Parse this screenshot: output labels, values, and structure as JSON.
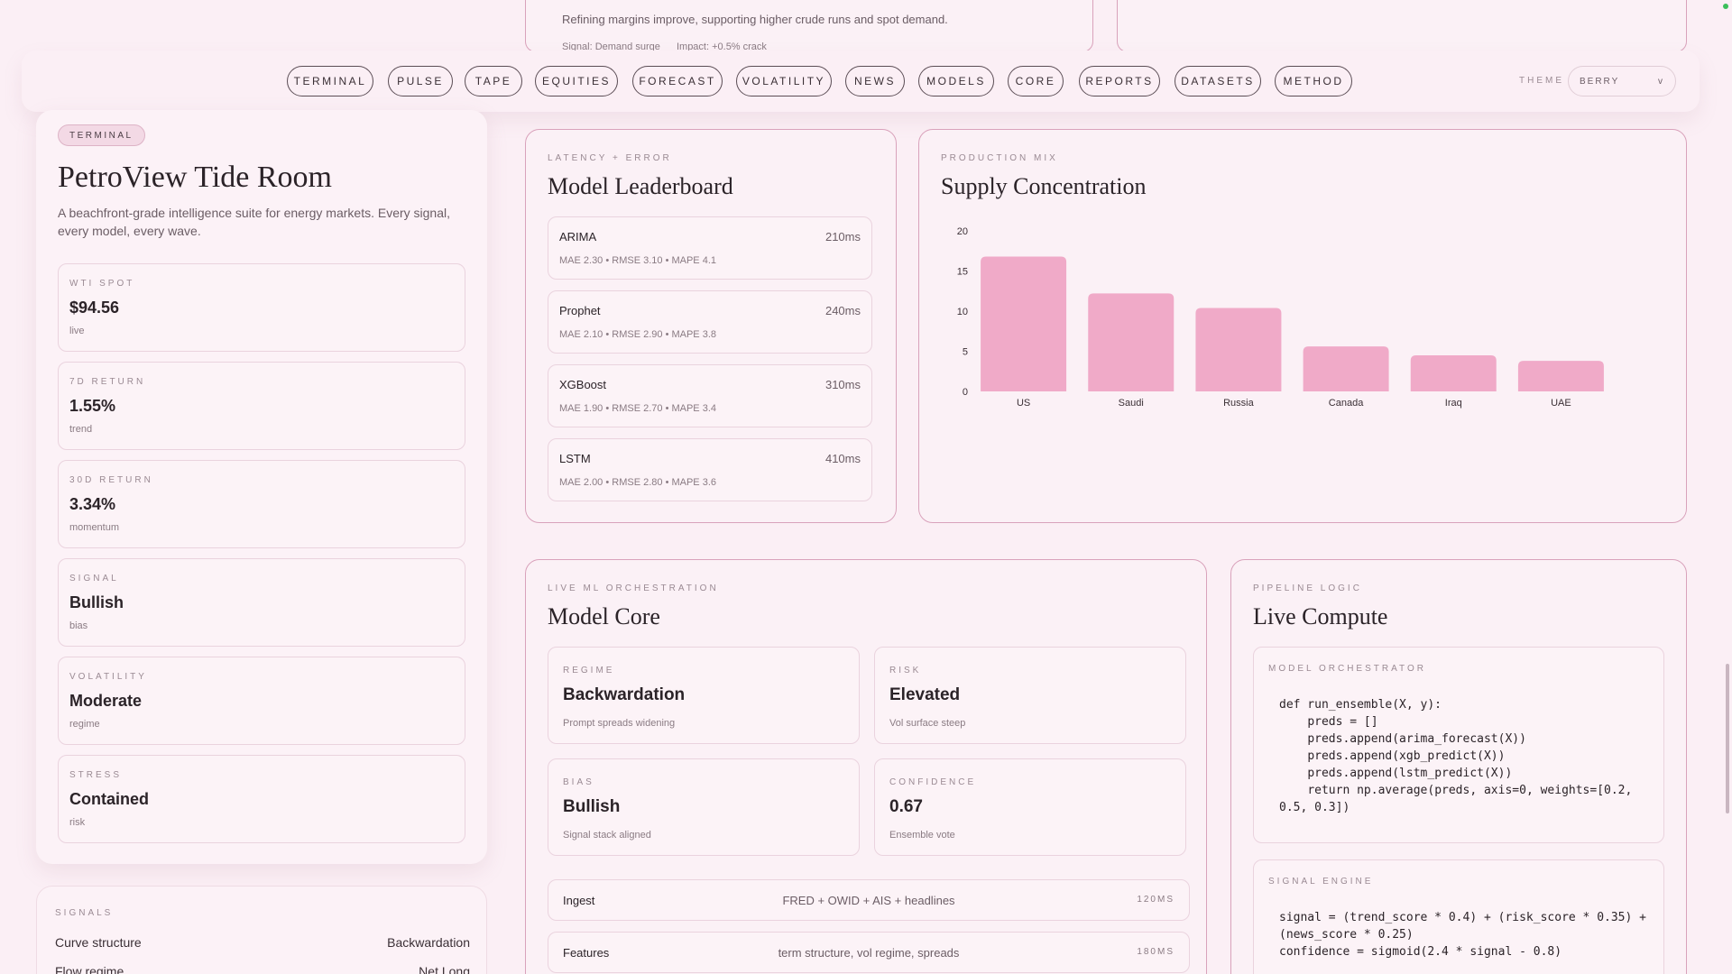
{
  "peek": {
    "text": "Refining margins improve, supporting higher crude runs and spot demand.",
    "signal": "Signal: Demand surge",
    "impact": "Impact: +0.5% crack"
  },
  "nav": {
    "items": [
      "TERMINAL",
      "PULSE",
      "TAPE",
      "EQUITIES",
      "FORECAST",
      "VOLATILITY",
      "NEWS",
      "MODELS",
      "CORE",
      "REPORTS",
      "DATASETS",
      "METHOD"
    ],
    "theme_label": "THEME",
    "theme_value": "BERRY",
    "theme_caret": "v"
  },
  "sidebar": {
    "badge": "TERMINAL",
    "title": "PetroView Tide Room",
    "description": "A beachfront-grade intelligence suite for energy markets. Every signal, every model, every wave.",
    "stats": [
      {
        "label": "WTI SPOT",
        "value": "$94.56",
        "sub": "live"
      },
      {
        "label": "7D RETURN",
        "value": "1.55%",
        "sub": "trend"
      },
      {
        "label": "30D RETURN",
        "value": "3.34%",
        "sub": "momentum"
      },
      {
        "label": "SIGNAL",
        "value": "Bullish",
        "sub": "bias"
      },
      {
        "label": "VOLATILITY",
        "value": "Moderate",
        "sub": "regime"
      },
      {
        "label": "STRESS",
        "value": "Contained",
        "sub": "risk"
      }
    ]
  },
  "signals": {
    "label": "SIGNALS",
    "rows": [
      {
        "name": "Curve structure",
        "value": "Backwardation"
      },
      {
        "name": "Flow regime",
        "value": "Net Long"
      }
    ]
  },
  "leaderboard": {
    "eyebrow": "LATENCY + ERROR",
    "title": "Model Leaderboard",
    "items": [
      {
        "name": "ARIMA",
        "latency": "210ms",
        "metrics": "MAE 2.30 • RMSE 3.10 • MAPE 4.1"
      },
      {
        "name": "Prophet",
        "latency": "240ms",
        "metrics": "MAE 2.10 • RMSE 2.90 • MAPE 3.8"
      },
      {
        "name": "XGBoost",
        "latency": "310ms",
        "metrics": "MAE 1.90 • RMSE 2.70 • MAPE 3.4"
      },
      {
        "name": "LSTM",
        "latency": "410ms",
        "metrics": "MAE 2.00 • RMSE 2.80 • MAPE 3.6"
      }
    ]
  },
  "supply": {
    "eyebrow": "PRODUCTION MIX",
    "title": "Supply Concentration"
  },
  "chart_data": {
    "type": "bar",
    "categories": [
      "US",
      "Saudi",
      "Russia",
      "Canada",
      "Iraq",
      "UAE"
    ],
    "values": [
      16.8,
      12.2,
      10.4,
      5.6,
      4.5,
      3.8
    ],
    "yticks": [
      "0",
      "5",
      "10",
      "15",
      "20"
    ],
    "ylim": [
      0,
      20
    ],
    "title": "",
    "xlabel": "",
    "ylabel": "",
    "bar_color": "#f0aac8",
    "grid": false
  },
  "model_core": {
    "eyebrow": "LIVE ML ORCHESTRATION",
    "title": "Model Core",
    "cards": [
      {
        "label": "REGIME",
        "value": "Backwardation",
        "sub": "Prompt spreads widening"
      },
      {
        "label": "RISK",
        "value": "Elevated",
        "sub": "Vol surface steep"
      },
      {
        "label": "BIAS",
        "value": "Bullish",
        "sub": "Signal stack aligned"
      },
      {
        "label": "CONFIDENCE",
        "value": "0.67",
        "sub": "Ensemble vote"
      }
    ],
    "pipeline": [
      {
        "stage": "Ingest",
        "detail": "FRED + OWID + AIS + headlines",
        "time": "120MS"
      },
      {
        "stage": "Features",
        "detail": "term structure, vol regime, spreads",
        "time": "180MS"
      }
    ]
  },
  "live_compute": {
    "eyebrow": "PIPELINE LOGIC",
    "title": "Live Compute",
    "orchestrator_label": "MODEL ORCHESTRATOR",
    "orchestrator_code": "def run_ensemble(X, y):\n    preds = []\n    preds.append(arima_forecast(X))\n    preds.append(xgb_predict(X))\n    preds.append(lstm_predict(X))\n    return np.average(preds, axis=0, weights=[0.2,\n0.5, 0.3])",
    "engine_label": "SIGNAL ENGINE",
    "engine_code": "signal = (trend_score * 0.4) + (risk_score * 0.35) +\n(news_score * 0.25)\nconfidence = sigmoid(2.4 * signal - 0.8)"
  }
}
